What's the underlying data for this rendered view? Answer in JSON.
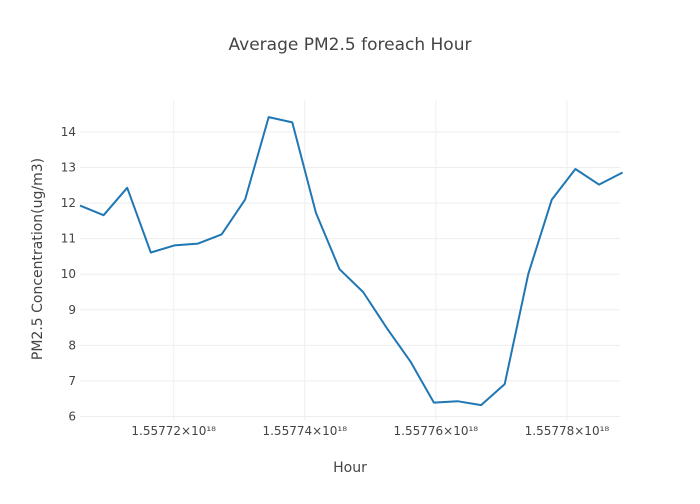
{
  "chart_data": {
    "type": "line",
    "title": "Average PM2.5 foreach Hour",
    "xlabel": "Hour",
    "ylabel": "PM2.5 Concentration(ug/m3)",
    "x_tick_labels": [
      "1.55772×10¹⁸",
      "1.55774×10¹⁸",
      "1.55776×10¹⁸",
      "1.55778×10¹⁸"
    ],
    "x_ticks": [
      1.55772e+18,
      1.55774e+18,
      1.55776e+18,
      1.55778e+18
    ],
    "xlim": [
      1.5577057e+18,
      1.5577881e+18
    ],
    "y_ticks": [
      6,
      7,
      8,
      9,
      10,
      11,
      12,
      13,
      14
    ],
    "ylim": [
      5.9,
      14.9
    ],
    "grid": true,
    "series": [
      {
        "color": "#1f77b4",
        "x": [
          1.5577057e+18,
          1.5577093e+18,
          1.5577129e+18,
          1.5577165e+18,
          1.5577201e+18,
          1.5577237e+18,
          1.5577273e+18,
          1.5577309e+18,
          1.5577345e+18,
          1.5577381e+18,
          1.5577417e+18,
          1.5577453e+18,
          1.5577489e+18,
          1.5577525e+18,
          1.5577561e+18,
          1.5577597e+18,
          1.5577633e+18,
          1.5577669e+18,
          1.5577705e+18,
          1.5577741e+18,
          1.5577777e+18,
          1.5577813e+18,
          1.5577849e+18,
          1.5577885e+18
        ],
        "y": [
          11.93,
          11.66,
          12.43,
          10.61,
          10.81,
          10.86,
          11.12,
          12.1,
          14.42,
          14.27,
          11.73,
          10.14,
          9.5,
          8.49,
          7.55,
          6.39,
          6.43,
          6.32,
          6.91,
          10.01,
          12.1,
          12.96,
          12.52,
          12.86
        ]
      }
    ]
  }
}
